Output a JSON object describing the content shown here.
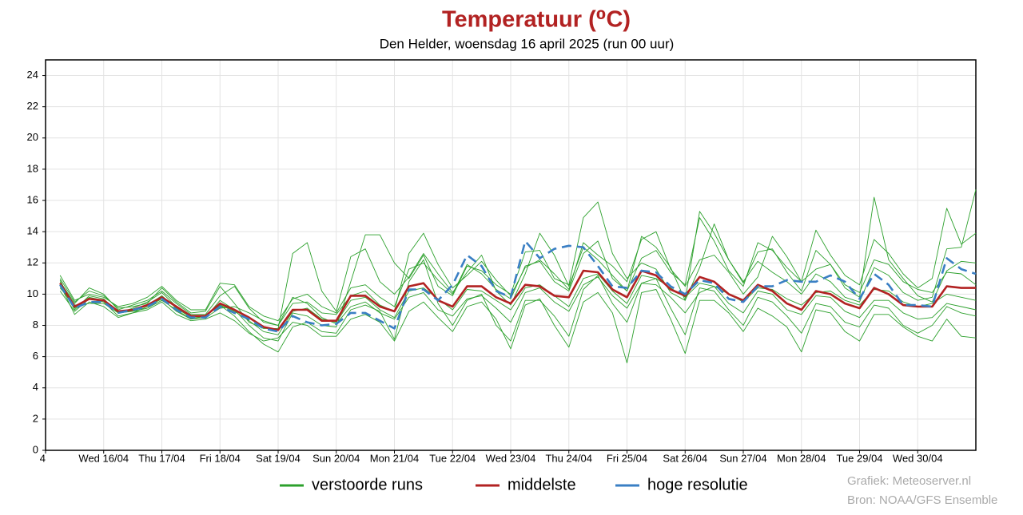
{
  "chart_data": {
    "type": "ensemble-line",
    "title": "Temperatuur (⁰C)",
    "subtitle": "Den Helder, woensdag 16 april 2025 (run 00 uur)",
    "xlim": [
      -1,
      63
    ],
    "xticks": [
      {
        "value": -1,
        "label": "4"
      },
      {
        "value": 3,
        "label": "Wed 16/04"
      },
      {
        "value": 7,
        "label": "Thu 17/04"
      },
      {
        "value": 11,
        "label": "Fri 18/04"
      },
      {
        "value": 15,
        "label": "Sat 19/04"
      },
      {
        "value": 19,
        "label": "Sun 20/04"
      },
      {
        "value": 23,
        "label": "Mon 21/04"
      },
      {
        "value": 27,
        "label": "Tue 22/04"
      },
      {
        "value": 31,
        "label": "Wed 23/04"
      },
      {
        "value": 35,
        "label": "Thu 24/04"
      },
      {
        "value": 39,
        "label": "Fri 25/04"
      },
      {
        "value": 43,
        "label": "Sat 26/04"
      },
      {
        "value": 47,
        "label": "Sun 27/04"
      },
      {
        "value": 51,
        "label": "Mon 28/04"
      },
      {
        "value": 55,
        "label": "Tue 29/04"
      },
      {
        "value": 59,
        "label": "Wed 30/04"
      }
    ],
    "ylim": [
      0,
      25
    ],
    "yticks": [
      0,
      2,
      4,
      6,
      8,
      10,
      12,
      14,
      16,
      18,
      20,
      22,
      24
    ],
    "grid": true,
    "series": [
      {
        "name": "verstoorde runs",
        "color": "#2ca02c",
        "members": [
          [
            10.9,
            9.0,
            9.9,
            9.7,
            8.8,
            9.1,
            9.5,
            10.1,
            9.2,
            8.6,
            8.5,
            9.6,
            9.0,
            8.0,
            7.2,
            7.0,
            8.8,
            8.6,
            8.0,
            7.9,
            10.8,
            13.8,
            13.8,
            12.0,
            11.0,
            12.5,
            10.5,
            9.9,
            11.8,
            11.5,
            10.6,
            10.0,
            12.7,
            12.8,
            11.0,
            10.6,
            14.9,
            15.9,
            12.6,
            11.0,
            12.0,
            11.6,
            10.1,
            9.6,
            11.7,
            14.5,
            12.2,
            10.8,
            12.1,
            11.4,
            10.8,
            10.0,
            11.3,
            10.8,
            9.8,
            9.5,
            11.7,
            11.2,
            10.1,
            9.6,
            9.8,
            12.9,
            13.0,
            16.7
          ],
          [
            10.4,
            9.3,
            9.4,
            9.4,
            8.8,
            8.9,
            9.1,
            9.6,
            9.0,
            8.4,
            8.6,
            9.3,
            8.6,
            7.6,
            6.8,
            6.3,
            7.9,
            8.2,
            7.6,
            7.5,
            9.0,
            9.3,
            8.9,
            7.1,
            10.8,
            12.2,
            9.4,
            8.0,
            9.6,
            10.0,
            8.0,
            7.0,
            9.6,
            9.6,
            8.6,
            7.3,
            10.3,
            11.2,
            9.4,
            8.2,
            10.7,
            11.0,
            9.1,
            7.4,
            10.4,
            10.2,
            9.0,
            8.0,
            9.8,
            9.5,
            8.6,
            7.5,
            9.4,
            9.2,
            8.2,
            7.9,
            9.3,
            9.1,
            8.0,
            7.5,
            8.0,
            9.2,
            8.8,
            8.6
          ],
          [
            11.0,
            9.5,
            10.2,
            9.9,
            9.1,
            9.2,
            9.4,
            10.4,
            9.5,
            8.8,
            8.9,
            10.5,
            9.4,
            8.2,
            7.8,
            7.8,
            12.6,
            13.3,
            10.2,
            8.9,
            12.4,
            12.9,
            10.8,
            10.0,
            11.1,
            12.6,
            11.3,
            10.1,
            11.4,
            12.5,
            10.2,
            9.3,
            11.3,
            13.9,
            12.5,
            10.5,
            13.0,
            12.2,
            11.2,
            10.2,
            13.7,
            13.0,
            11.7,
            9.6,
            15.3,
            13.9,
            12.2,
            10.7,
            12.7,
            12.9,
            11.4,
            10.2,
            12.8,
            11.9,
            10.4,
            9.8,
            16.2,
            12.2,
            11.0,
            9.9,
            9.5,
            11.5,
            12.1,
            12.0
          ],
          [
            10.6,
            8.7,
            9.5,
            9.2,
            8.5,
            8.8,
            9.0,
            9.5,
            8.7,
            8.3,
            8.4,
            8.8,
            8.3,
            7.5,
            7.0,
            7.2,
            8.2,
            8.0,
            7.3,
            7.3,
            8.4,
            8.7,
            8.2,
            7.0,
            8.9,
            9.5,
            8.5,
            7.6,
            9.2,
            9.5,
            8.4,
            6.5,
            9.3,
            9.7,
            8.0,
            6.6,
            9.5,
            10.1,
            8.8,
            5.6,
            10.1,
            10.3,
            8.4,
            6.2,
            9.6,
            9.6,
            8.8,
            7.6,
            9.1,
            8.6,
            7.9,
            6.3,
            9.0,
            8.8,
            7.6,
            7.0,
            8.7,
            8.7,
            7.9,
            7.3,
            7.0,
            8.4,
            7.3,
            7.2
          ],
          [
            10.8,
            9.4,
            10.4,
            10.0,
            9.0,
            9.3,
            9.6,
            10.2,
            9.4,
            8.7,
            8.7,
            9.9,
            10.5,
            9.1,
            8.2,
            8.0,
            9.4,
            9.5,
            8.8,
            8.7,
            9.9,
            10.2,
            9.3,
            8.9,
            12.6,
            13.9,
            11.9,
            10.4,
            11.2,
            12.1,
            10.9,
            9.9,
            11.7,
            12.2,
            11.3,
            10.3,
            13.3,
            12.5,
            11.8,
            10.8,
            13.5,
            14.0,
            11.6,
            10.5,
            12.2,
            12.5,
            11.4,
            10.0,
            11.1,
            13.7,
            12.4,
            10.8,
            11.6,
            11.9,
            10.6,
            10.1,
            12.2,
            11.9,
            10.8,
            10.3,
            10.1,
            11.4,
            11.3,
            10.6
          ],
          [
            10.5,
            9.1,
            9.8,
            9.6,
            8.9,
            8.9,
            9.3,
            9.9,
            9.1,
            8.5,
            8.6,
            9.3,
            8.9,
            8.3,
            7.6,
            7.4,
            8.9,
            9.1,
            8.4,
            8.2,
            9.6,
            9.8,
            9.0,
            8.5,
            10.2,
            10.4,
            9.7,
            9.0,
            10.3,
            10.2,
            9.6,
            9.0,
            10.4,
            10.6,
            9.9,
            9.2,
            11.0,
            11.3,
            10.2,
            9.4,
            11.2,
            11.0,
            10.4,
            9.8,
            10.7,
            10.5,
            10.0,
            9.5,
            10.4,
            10.3,
            9.7,
            9.3,
            10.1,
            10.2,
            9.6,
            9.3,
            10.3,
            10.2,
            9.5,
            9.2,
            9.4,
            10.0,
            9.8,
            9.6
          ],
          [
            10.2,
            8.9,
            9.7,
            9.5,
            8.6,
            8.8,
            9.2,
            9.7,
            8.9,
            8.4,
            8.5,
            9.1,
            9.2,
            8.8,
            8.3,
            8.0,
            9.8,
            9.4,
            8.5,
            8.1,
            9.2,
            9.5,
            8.8,
            8.4,
            9.8,
            10.1,
            9.0,
            8.6,
            9.7,
            9.9,
            9.1,
            8.2,
            10.1,
            10.4,
            9.5,
            8.9,
            10.6,
            11.1,
            9.9,
            9.1,
            10.7,
            10.6,
            9.8,
            8.8,
            10.1,
            10.5,
            9.4,
            8.8,
            10.2,
            10.0,
            9.0,
            8.7,
            9.9,
            9.8,
            8.9,
            8.5,
            9.6,
            9.6,
            8.8,
            8.4,
            8.5,
            9.4,
            9.2,
            9.0
          ],
          [
            11.2,
            9.6,
            10.0,
            9.8,
            9.2,
            9.4,
            9.8,
            10.5,
            9.6,
            9.0,
            9.0,
            10.7,
            10.6,
            9.2,
            8.6,
            8.3,
            9.7,
            10.0,
            9.2,
            8.8,
            10.4,
            10.6,
            9.8,
            9.2,
            11.6,
            12.0,
            10.9,
            10.0,
            11.9,
            11.3,
            10.3,
            9.7,
            11.8,
            12.1,
            10.8,
            10.2,
            12.6,
            13.4,
            11.0,
            10.2,
            12.3,
            12.8,
            11.4,
            10.6,
            14.9,
            13.4,
            11.5,
            10.5,
            13.3,
            12.8,
            11.7,
            10.8,
            14.1,
            12.5,
            11.2,
            10.6,
            13.5,
            12.6,
            11.3,
            10.4,
            11.0,
            15.5,
            13.2,
            13.9
          ]
        ]
      },
      {
        "name": "middelste",
        "color": "#b22222",
        "values": [
          10.7,
          9.2,
          9.7,
          9.6,
          8.9,
          9.0,
          9.3,
          9.8,
          9.2,
          8.6,
          8.6,
          9.4,
          9.0,
          8.5,
          7.9,
          7.7,
          9.0,
          9.0,
          8.3,
          8.3,
          9.9,
          9.9,
          9.2,
          8.9,
          10.5,
          10.7,
          9.6,
          9.2,
          10.5,
          10.5,
          9.8,
          9.4,
          10.6,
          10.5,
          9.9,
          9.8,
          11.5,
          11.4,
          10.3,
          9.8,
          11.5,
          11.2,
          10.3,
          9.9,
          11.1,
          10.8,
          10.0,
          9.6,
          10.6,
          10.2,
          9.4,
          9.0,
          10.2,
          10.0,
          9.4,
          9.1,
          10.4,
          10.0,
          9.3,
          9.2,
          9.2,
          10.5,
          10.4,
          10.4
        ]
      },
      {
        "name": "hoge resolutie",
        "color": "#3a7fc4",
        "linestyle": "dashed",
        "values": [
          10.6,
          9.1,
          9.5,
          9.5,
          8.8,
          9.0,
          9.2,
          9.7,
          9.0,
          8.5,
          8.5,
          9.2,
          8.8,
          8.4,
          7.8,
          7.6,
          8.6,
          8.2,
          8.0,
          8.1,
          8.8,
          8.8,
          8.3,
          7.8,
          10.3,
          10.3,
          9.6,
          10.6,
          12.5,
          11.8,
          10.2,
          9.8,
          13.4,
          12.3,
          12.9,
          13.1,
          13.0,
          11.8,
          10.5,
          10.4,
          11.5,
          11.4,
          10.5,
          10.0,
          10.9,
          10.7,
          9.7,
          9.5,
          10.5,
          10.5,
          10.9,
          10.8,
          10.8,
          11.2,
          10.8,
          9.7,
          11.3,
          10.6,
          9.3,
          9.3,
          9.2,
          12.3,
          11.6,
          11.3
        ]
      }
    ],
    "credits": [
      "Grafiek: Meteoserver.nl",
      "Bron: NOAA/GFS Ensemble"
    ]
  }
}
